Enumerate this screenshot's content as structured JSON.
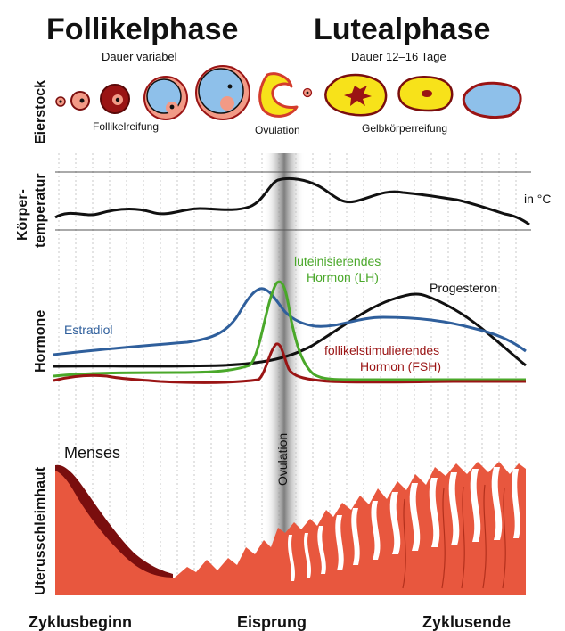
{
  "phases": {
    "follicular": {
      "title": "Follikelphase",
      "duration": "Dauer variabel"
    },
    "luteal": {
      "title": "Lutealphase",
      "duration": "Dauer 12–16 Tage"
    }
  },
  "row_labels": {
    "ovary": "Eierstock",
    "temperature_line1": "Körper-",
    "temperature_line2": "temperatur",
    "hormones": "Hormone",
    "endometrium": "Uterusschleimhaut"
  },
  "ovary_stages": {
    "follicle_maturation": "Follikelreifung",
    "ovulation": "Ovulation",
    "corpus_luteum_maturation": "Gelbkörperreifung"
  },
  "temperature": {
    "unit": "in °C"
  },
  "hormones": {
    "estradiol": {
      "label": "Estradiol",
      "color": "#2f5f9c"
    },
    "lh": {
      "label_line1": "luteinisierendes",
      "label_line2": "Hormon (LH)",
      "color": "#4aa82a"
    },
    "progesterone": {
      "label": "Progesteron",
      "color": "#111111"
    },
    "fsh": {
      "label_line1": "follikelstimulierendes",
      "label_line2": "Hormon (FSH)",
      "color": "#9a1414"
    }
  },
  "endometrium": {
    "menses_label": "Menses",
    "tissue_color": "#e8573e",
    "shed_color": "#7a0e0e"
  },
  "ovulation_band_label": "Ovulation",
  "x_axis": {
    "start": "Zyklusbeginn",
    "mid": "Eisprung",
    "end": "Zyklusende"
  }
}
